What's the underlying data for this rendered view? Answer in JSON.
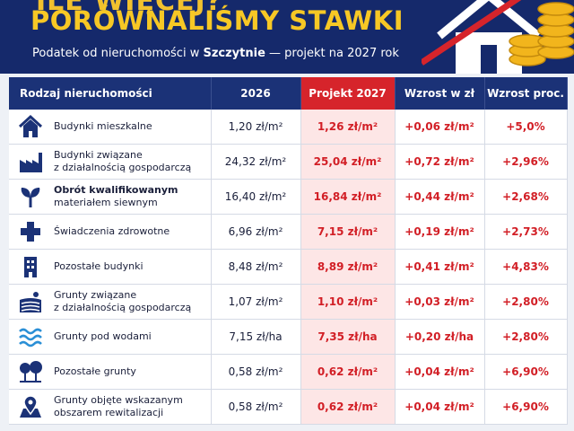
{
  "header": {
    "kicker": "ILE WIĘCEJ?",
    "title": "PORÓWNALIŚMY STAWKI",
    "subtitle": {
      "before": "Podatek od nieruchomości w ",
      "city": "Szczytnie",
      "after": " — projekt na 2027 rok"
    }
  },
  "table": {
    "columns": [
      "Rodzaj nieruchomości",
      "2026",
      "Projekt 2027",
      "Wzrost w zł",
      "Wzrost proc."
    ],
    "rows": [
      {
        "label": [
          "Budynki mieszkalne"
        ],
        "cells": [
          "1,20 zł/m²",
          "1,26 zł/m²",
          "+0,06 zł/m²",
          "+5,0%"
        ]
      },
      {
        "label": [
          "Budynki związane",
          "z działalnością gospodarczą"
        ],
        "cells": [
          "24,32 zł/m²",
          "25,04 zł/m²",
          "+0,72 zł/m²",
          "+2,96%"
        ]
      },
      {
        "label": [
          "Obrót kwalifikowanym",
          "materiałem siewnym"
        ],
        "cells": [
          "16,40 zł/m²",
          "16,84 zł/m²",
          "+0,44 zł/m²",
          "+2,68%"
        ]
      },
      {
        "label": [
          "Świadczenia zdrowotne"
        ],
        "cells": [
          "6,96 zł/m²",
          "7,15 zł/m²",
          "+0,19 zł/m²",
          "+2,73%"
        ]
      },
      {
        "label": [
          "Pozostałe budynki"
        ],
        "cells": [
          "8,48 zł/m²",
          "8,89 zł/m²",
          "+0,41 zł/m²",
          "+4,83%"
        ]
      },
      {
        "label": [
          "Grunty związane",
          "z działalnością gospodarczą"
        ],
        "cells": [
          "1,07 zł/m²",
          "1,10 zł/m²",
          "+0,03 zł/m²",
          "+2,80%"
        ]
      },
      {
        "label": [
          "Grunty pod wodami"
        ],
        "cells": [
          "7,15 zł/ha",
          "7,35 zł/ha",
          "+0,20 zł/ha",
          "+2,80%"
        ]
      },
      {
        "label": [
          "Pozostałe grunty"
        ],
        "cells": [
          "0,58 zł/m²",
          "0,62 zł/m²",
          "+0,04 zł/m²",
          "+6,90%"
        ]
      },
      {
        "label": [
          "Grunty objęte wskazanym",
          "obszarem rewitalizacji"
        ],
        "cells": [
          "0,58 zł/m²",
          "0,62 zł/m²",
          "+0,04 zł/m²",
          "+6,90%"
        ]
      }
    ]
  }
}
